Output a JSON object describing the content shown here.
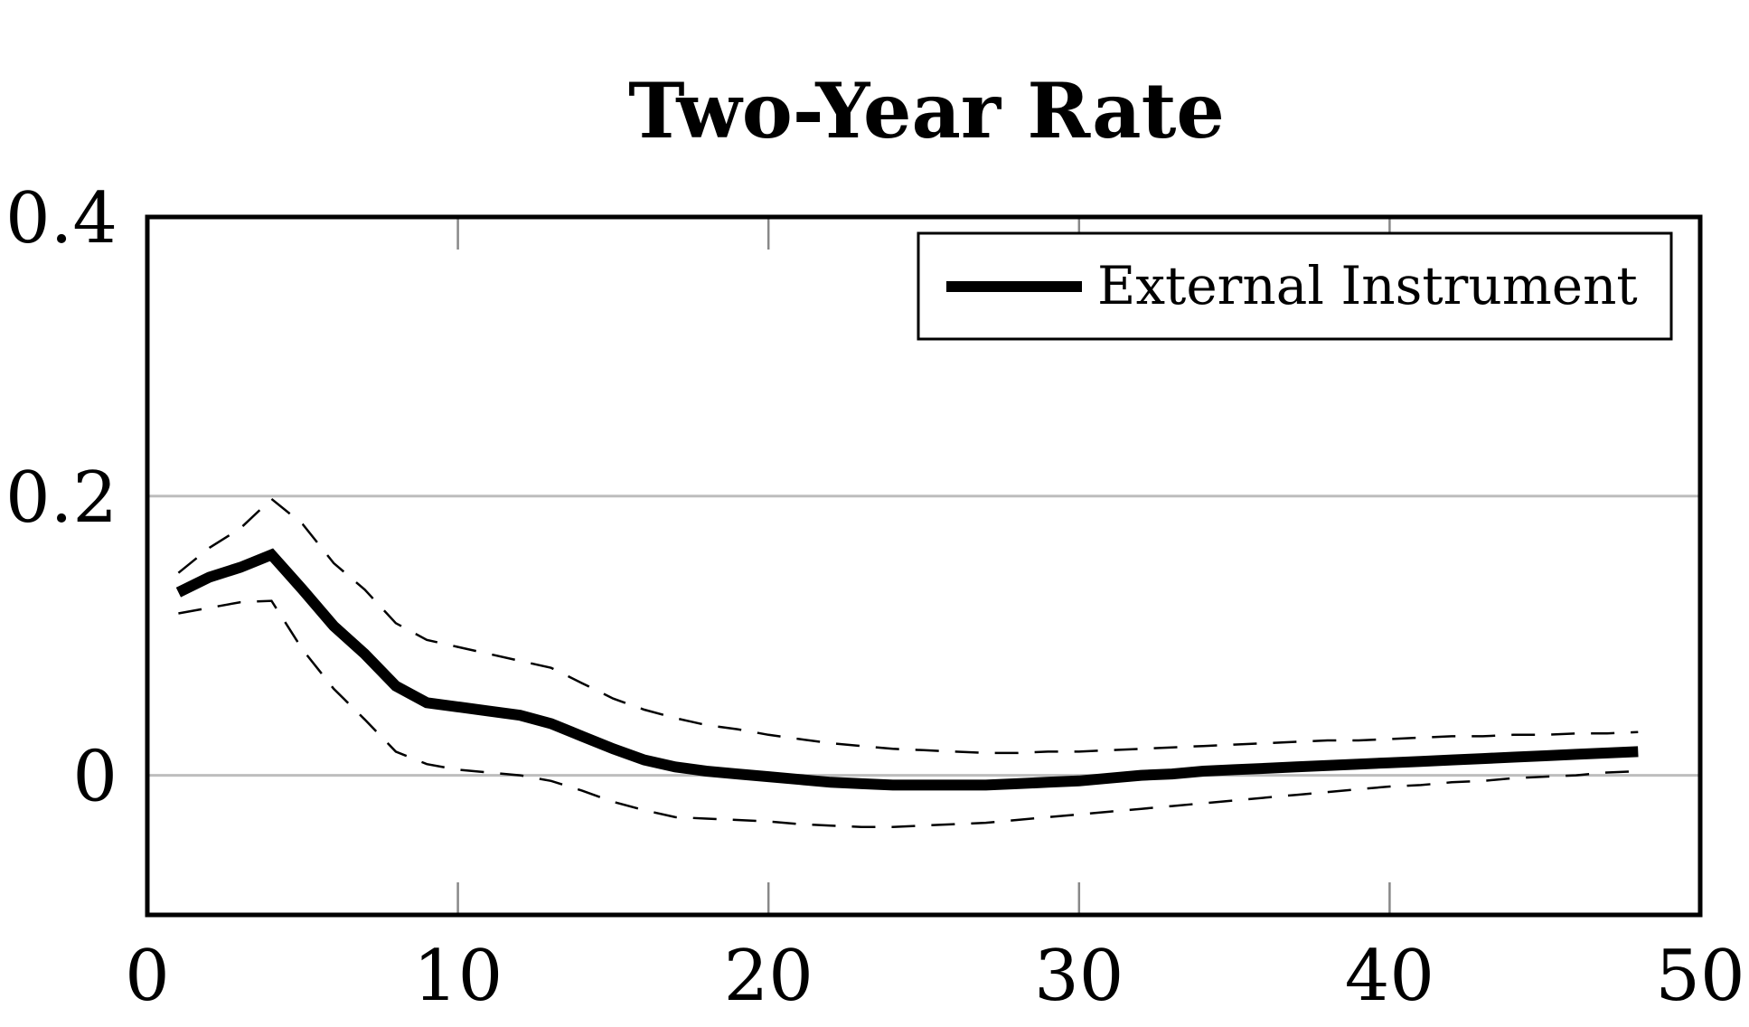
{
  "chart_data": {
    "type": "line",
    "title": "Two-Year Rate",
    "xlabel": "",
    "ylabel": "",
    "xlim": [
      0,
      50
    ],
    "ylim": [
      -0.1,
      0.4
    ],
    "x_ticks": [
      0,
      10,
      20,
      30,
      40,
      50
    ],
    "x_tick_labels": [
      "0",
      "10",
      "20",
      "30",
      "40",
      "50"
    ],
    "y_ticks": [
      0,
      0.2,
      0.4
    ],
    "y_tick_labels": [
      "0",
      "0.2",
      "0.4"
    ],
    "grid": "horizontal at y-ticks",
    "legend": {
      "position": "top-right",
      "entries": [
        "External Instrument"
      ]
    },
    "x": [
      1,
      2,
      3,
      4,
      5,
      6,
      7,
      8,
      9,
      10,
      11,
      12,
      13,
      14,
      15,
      16,
      17,
      18,
      19,
      20,
      21,
      22,
      23,
      24,
      25,
      26,
      27,
      28,
      29,
      30,
      31,
      32,
      33,
      34,
      35,
      36,
      37,
      38,
      39,
      40,
      41,
      42,
      43,
      44,
      45,
      46,
      47,
      48
    ],
    "series": [
      {
        "name": "External Instrument",
        "style": "solid-thick",
        "values": [
          0.131,
          0.142,
          0.149,
          0.158,
          0.133,
          0.107,
          0.087,
          0.064,
          0.052,
          0.049,
          0.046,
          0.043,
          0.037,
          0.028,
          0.019,
          0.011,
          0.006,
          0.003,
          0.001,
          -0.001,
          -0.003,
          -0.005,
          -0.006,
          -0.007,
          -0.007,
          -0.007,
          -0.007,
          -0.006,
          -0.005,
          -0.004,
          -0.002,
          0.0,
          0.001,
          0.003,
          0.004,
          0.005,
          0.006,
          0.007,
          0.008,
          0.009,
          0.01,
          0.011,
          0.012,
          0.013,
          0.014,
          0.015,
          0.016,
          0.017
        ]
      },
      {
        "style": "dashed-upper",
        "values": [
          0.145,
          0.163,
          0.177,
          0.198,
          0.18,
          0.152,
          0.133,
          0.109,
          0.097,
          0.092,
          0.087,
          0.082,
          0.077,
          0.066,
          0.055,
          0.047,
          0.041,
          0.036,
          0.033,
          0.029,
          0.026,
          0.023,
          0.021,
          0.019,
          0.018,
          0.017,
          0.016,
          0.016,
          0.017,
          0.017,
          0.018,
          0.019,
          0.02,
          0.021,
          0.022,
          0.023,
          0.024,
          0.025,
          0.025,
          0.026,
          0.027,
          0.028,
          0.028,
          0.029,
          0.029,
          0.03,
          0.03,
          0.031
        ]
      },
      {
        "style": "dashed-lower",
        "values": [
          0.116,
          0.12,
          0.124,
          0.125,
          0.09,
          0.062,
          0.04,
          0.017,
          0.008,
          0.004,
          0.002,
          0.0,
          -0.004,
          -0.011,
          -0.019,
          -0.025,
          -0.03,
          -0.031,
          -0.032,
          -0.033,
          -0.035,
          -0.036,
          -0.037,
          -0.037,
          -0.036,
          -0.035,
          -0.034,
          -0.032,
          -0.03,
          -0.028,
          -0.026,
          -0.024,
          -0.022,
          -0.02,
          -0.018,
          -0.016,
          -0.014,
          -0.012,
          -0.01,
          -0.008,
          -0.007,
          -0.005,
          -0.004,
          -0.002,
          -0.001,
          0.0,
          0.002,
          0.003
        ]
      }
    ]
  }
}
